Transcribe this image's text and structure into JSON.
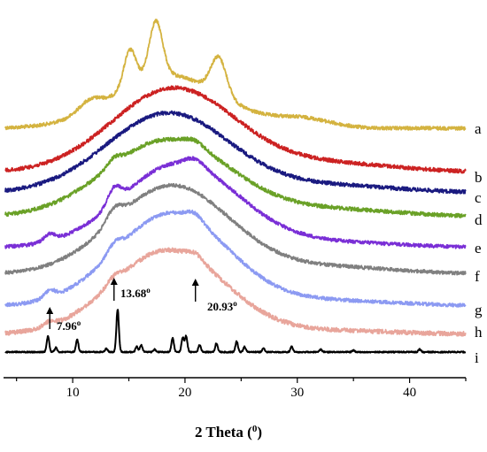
{
  "chart_data": {
    "type": "line",
    "xlabel": "2 Theta (",
    "xlabel_unit": "0",
    "xlabel_close": ")",
    "xlim": [
      4,
      45
    ],
    "xticks": [
      10,
      20,
      30,
      40
    ],
    "grid": false,
    "y_axis_visible": false,
    "annotations": [
      {
        "text": "7.96",
        "sup": "o",
        "x": 7.96,
        "series": "h"
      },
      {
        "text": "13.68",
        "sup": "o",
        "x": 13.68,
        "series": "h"
      },
      {
        "text": "20.93",
        "sup": "o",
        "x": 20.93,
        "series": "h"
      }
    ],
    "series": [
      {
        "name": "a",
        "color": "#d4b340"
      },
      {
        "name": "b",
        "color": "#cc2222"
      },
      {
        "name": "c",
        "color": "#1a1a80"
      },
      {
        "name": "d",
        "color": "#6aa127"
      },
      {
        "name": "e",
        "color": "#7a2fd6"
      },
      {
        "name": "f",
        "color": "#808080"
      },
      {
        "name": "g",
        "color": "#8c9af2"
      },
      {
        "name": "h",
        "color": "#e8a59b"
      },
      {
        "name": "i",
        "color": "#000000"
      }
    ],
    "peaks": {
      "a": [
        11.5,
        15.1,
        17.4,
        23.0,
        30.5
      ],
      "d": [
        13.7,
        20.9
      ],
      "e": [
        7.96,
        13.7,
        20.9
      ],
      "f": [
        13.7
      ],
      "g": [
        7.96,
        13.7,
        20.9
      ],
      "h": [
        7.96,
        13.68,
        20.93
      ],
      "i": [
        7.8,
        8.5,
        10.4,
        13.0,
        14.0,
        15.7,
        16.1,
        17.3,
        18.9,
        19.8,
        20.1,
        21.3,
        22.8,
        24.6,
        25.3,
        27.0,
        29.5,
        32.1,
        35.0,
        40.9
      ]
    }
  }
}
